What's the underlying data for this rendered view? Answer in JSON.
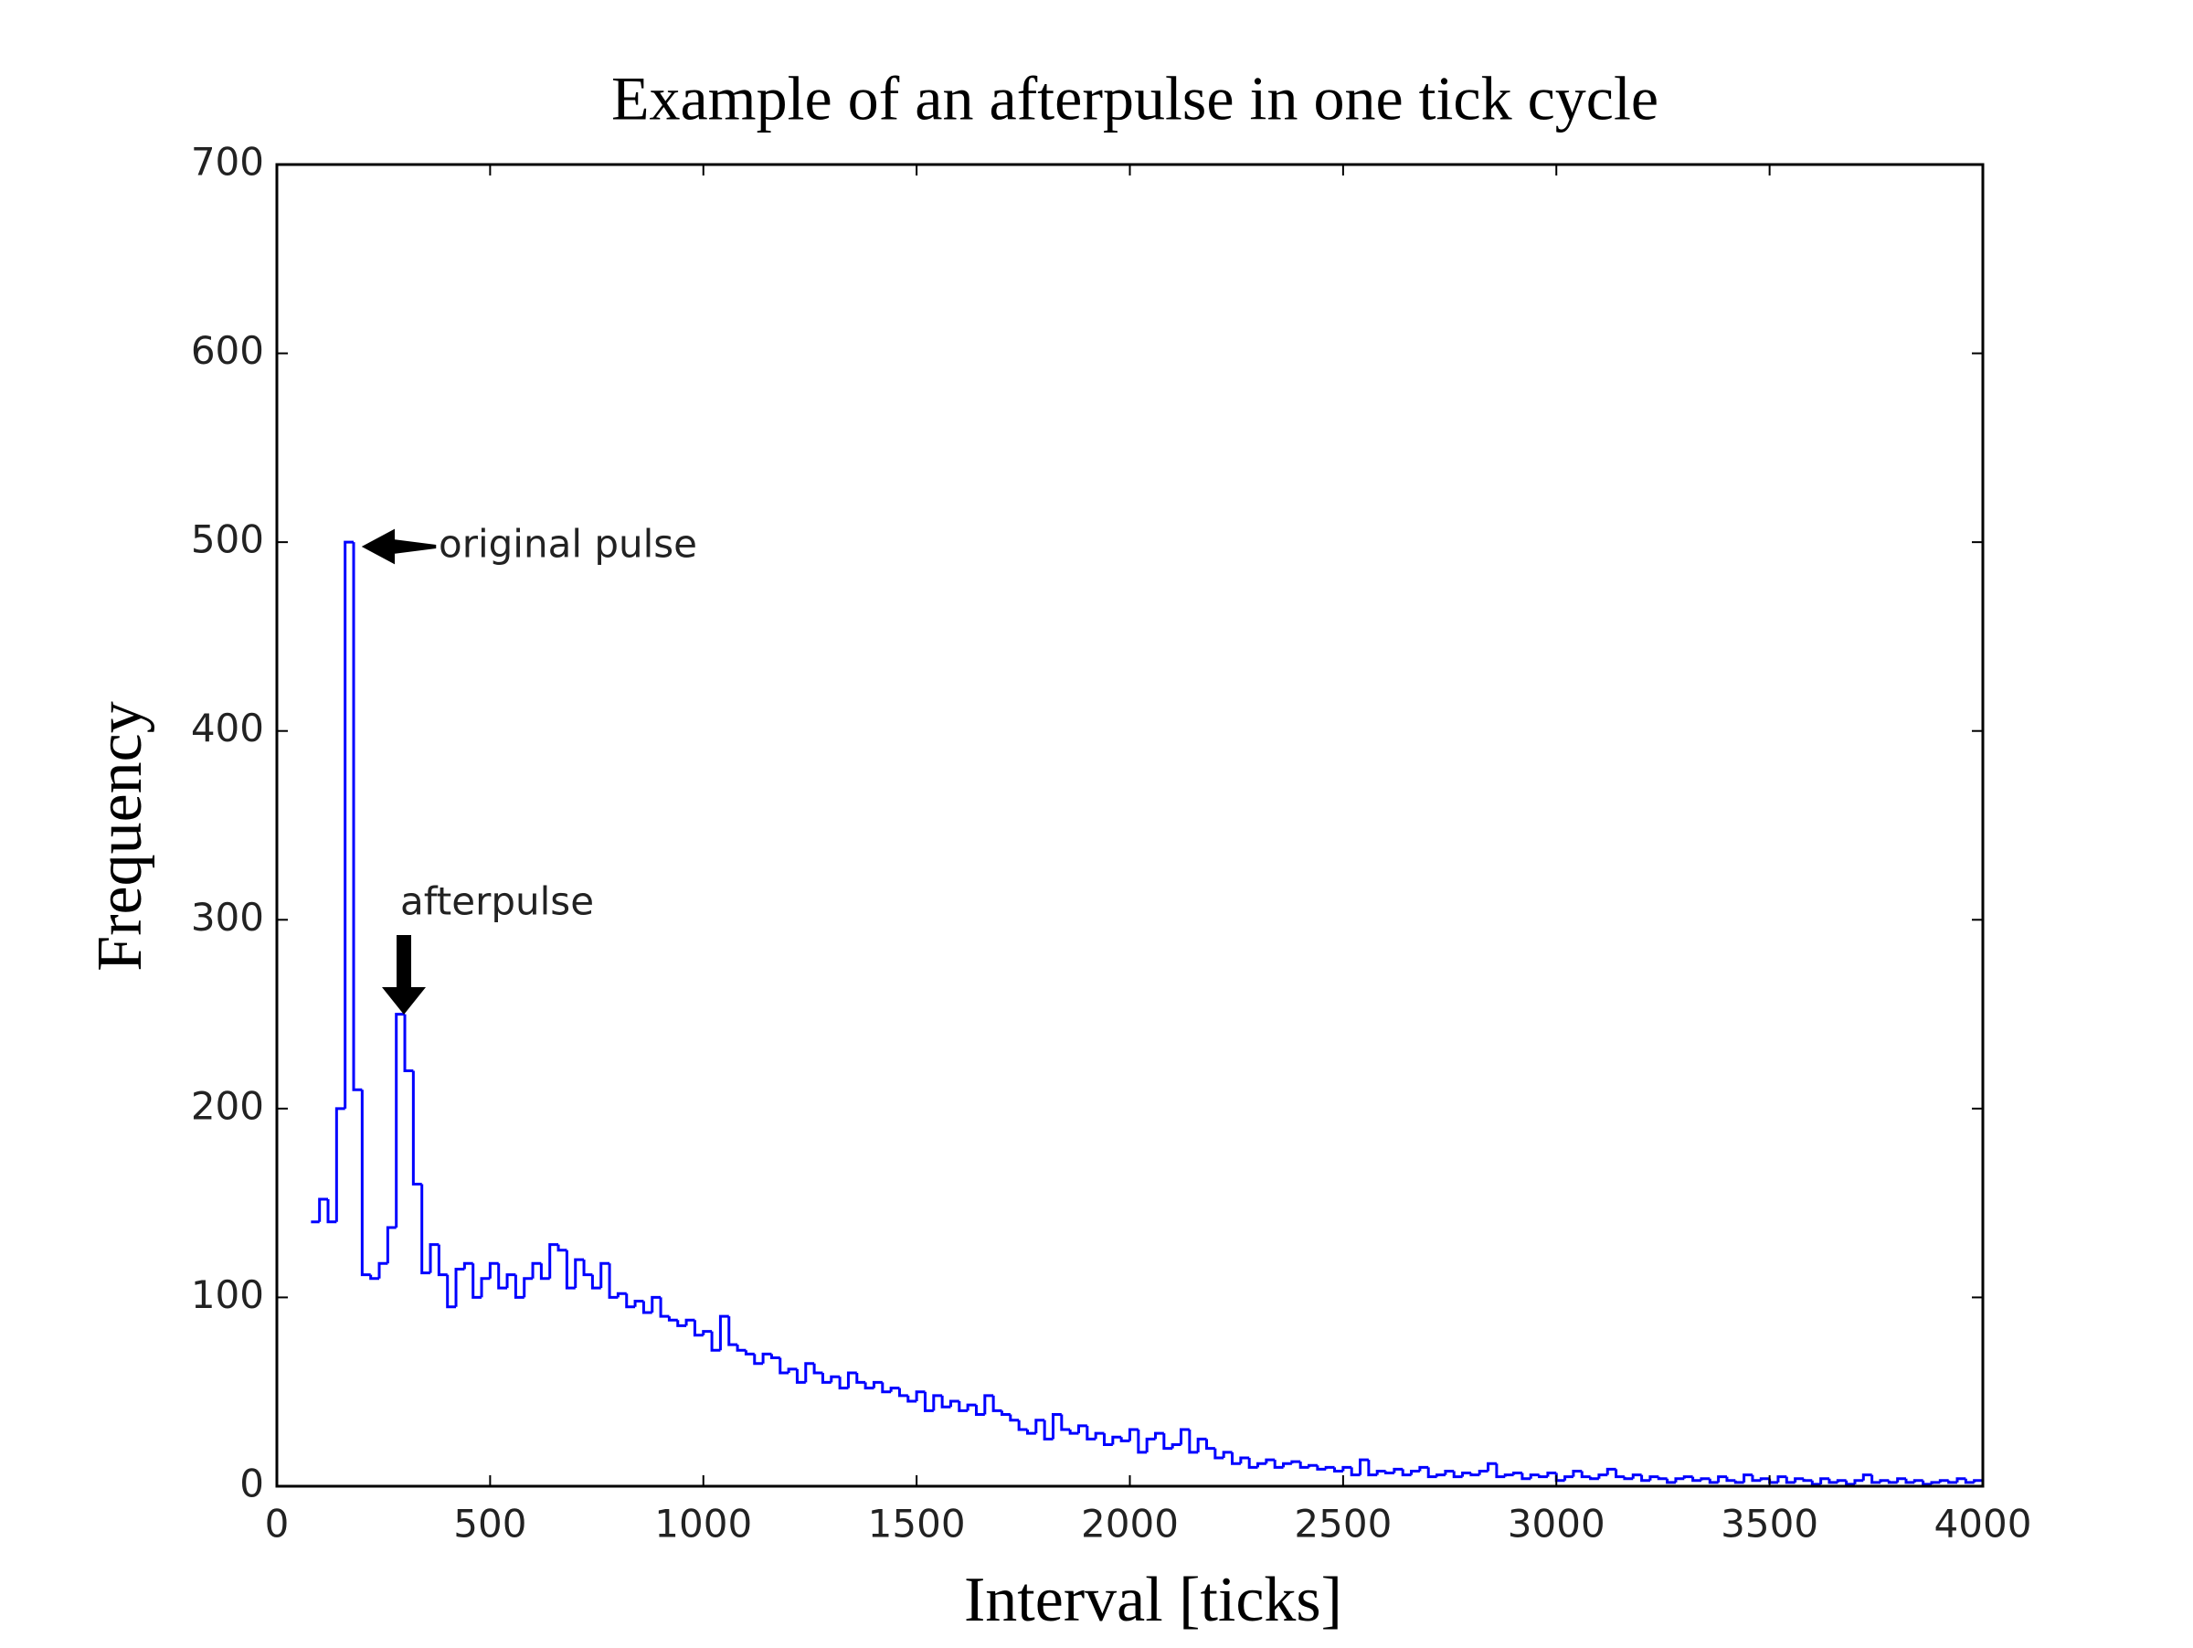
{
  "chart_data": {
    "type": "histogram",
    "title": "Example of an afterpulse in one tick cycle",
    "x_label": "Interval [ticks]",
    "y_label": "Frequency",
    "color": "#0000ff",
    "xlim": [
      0,
      4000
    ],
    "xticks": [
      0,
      500,
      1000,
      1500,
      2000,
      2500,
      3000,
      3500,
      4000
    ],
    "ylim": [
      0,
      700
    ],
    "yticks": [
      0,
      100,
      200,
      300,
      400,
      500,
      600,
      700
    ],
    "annotations": [
      "original pulse",
      "afterpulse"
    ],
    "bins": [
      80,
      100,
      120,
      140,
      160,
      180,
      200,
      220,
      240,
      260,
      280,
      300,
      320,
      340,
      360,
      380,
      400,
      420,
      440,
      460,
      480,
      500,
      520,
      540,
      560,
      580,
      600,
      620,
      640,
      660,
      680,
      700,
      720,
      740,
      760,
      780,
      800,
      820,
      840,
      860,
      880,
      900,
      920,
      940,
      960,
      980,
      1000,
      1020,
      1040,
      1060,
      1080,
      1100,
      1120,
      1140,
      1160,
      1180,
      1200,
      1220,
      1240,
      1260,
      1280,
      1300,
      1320,
      1340,
      1360,
      1380,
      1400,
      1420,
      1440,
      1460,
      1480,
      1500,
      1520,
      1540,
      1560,
      1580,
      1600,
      1620,
      1640,
      1660,
      1680,
      1700,
      1720,
      1740,
      1760,
      1780,
      1800,
      1820,
      1840,
      1860,
      1880,
      1900,
      1920,
      1940,
      1960,
      1980,
      2000,
      2020,
      2040,
      2060,
      2080,
      2100,
      2120,
      2140,
      2160,
      2180,
      2200,
      2220,
      2240,
      2260,
      2280,
      2300,
      2320,
      2340,
      2360,
      2380,
      2400,
      2420,
      2440,
      2460,
      2480,
      2500,
      2520,
      2540,
      2560,
      2580,
      2600,
      2620,
      2640,
      2660,
      2680,
      2700,
      2720,
      2740,
      2760,
      2780,
      2800,
      2820,
      2840,
      2860,
      2880,
      2900,
      2920,
      2940,
      2960,
      2980,
      3000,
      3020,
      3040,
      3060,
      3080,
      3100,
      3120,
      3140,
      3160,
      3180,
      3200,
      3220,
      3240,
      3260,
      3280,
      3300,
      3320,
      3340,
      3360,
      3380,
      3400,
      3420,
      3440,
      3460,
      3480,
      3500,
      3520,
      3540,
      3560,
      3580,
      3600,
      3620,
      3640,
      3660,
      3680,
      3700,
      3720,
      3740,
      3760,
      3780,
      3800,
      3820,
      3840,
      3860,
      3880,
      3900,
      3920,
      3940,
      3960,
      3980,
      4000
    ],
    "values": [
      140,
      152,
      140,
      200,
      500,
      210,
      112,
      110,
      118,
      137,
      250,
      220,
      160,
      113,
      128,
      112,
      95,
      115,
      118,
      100,
      110,
      118,
      105,
      112,
      100,
      110,
      118,
      110,
      128,
      125,
      105,
      120,
      112,
      105,
      118,
      100,
      102,
      95,
      98,
      92,
      100,
      90,
      88,
      85,
      88,
      80,
      82,
      72,
      90,
      75,
      72,
      70,
      65,
      70,
      68,
      60,
      62,
      55,
      65,
      60,
      55,
      58,
      52,
      60,
      55,
      52,
      55,
      50,
      52,
      48,
      45,
      50,
      40,
      48,
      42,
      45,
      40,
      43,
      38,
      48,
      40,
      38,
      35,
      30,
      28,
      35,
      25,
      38,
      30,
      28,
      32,
      25,
      28,
      22,
      26,
      24,
      30,
      18,
      25,
      28,
      20,
      22,
      30,
      18,
      25,
      20,
      15,
      18,
      12,
      15,
      10,
      12,
      14,
      10,
      12,
      13,
      10,
      11,
      9,
      10,
      8,
      10,
      6,
      14,
      6,
      8,
      7,
      9,
      6,
      8,
      10,
      5,
      6,
      8,
      5,
      7,
      6,
      8,
      12,
      5,
      6,
      7,
      4,
      6,
      5,
      7,
      3,
      5,
      8,
      5,
      4,
      6,
      9,
      5,
      4,
      6,
      3,
      5,
      4,
      2,
      4,
      5,
      3,
      4,
      2,
      5,
      3,
      2,
      6,
      3,
      4,
      2,
      5,
      2,
      4,
      3,
      1,
      4,
      2,
      3,
      1,
      3,
      6,
      2,
      3,
      2,
      4,
      2,
      3,
      1,
      2,
      3,
      2,
      4,
      2,
      3
    ]
  }
}
